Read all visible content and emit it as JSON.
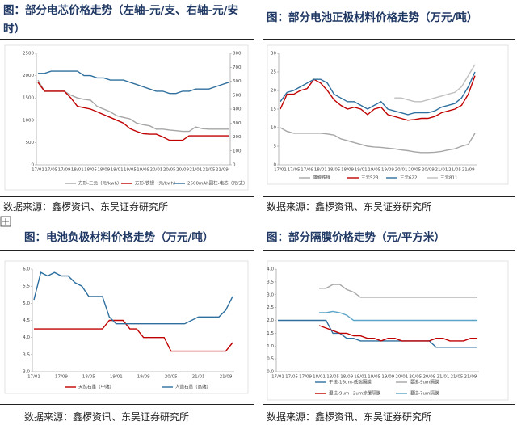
{
  "chart_data": [
    {
      "type": "line",
      "title": "图：部分电芯价格走势（左轴-元/支、右轴-元/安时）",
      "source": "数据来源：鑫椤资讯、东吴证券研究所",
      "categories": [
        "17/01",
        null,
        "17/05",
        null,
        "17/09",
        null,
        "18/01",
        null,
        "18/05",
        null,
        "18/09",
        null,
        "19/01",
        null,
        "19/05",
        null,
        "19/09",
        null,
        "20/01",
        null,
        "20/05",
        null,
        "20/09",
        null,
        "21/01",
        null,
        "21/05",
        null,
        "21/09",
        null
      ],
      "ylim": [
        0,
        2500
      ],
      "yticks": [
        0,
        500,
        1000,
        1500,
        2000,
        2500
      ],
      "y2lim": [
        0,
        800
      ],
      "y2ticks": [
        0,
        100,
        200,
        300,
        400,
        500,
        600,
        700,
        800
      ],
      "series": [
        {
          "name": "方形-三元（元/kwh）",
          "color": "#a6a6a6",
          "axis": "y2",
          "values": [
            608,
            528,
            528,
            528,
            528,
            500,
            480,
            470,
            464,
            420,
            400,
            380,
            352,
            340,
            330,
            300,
            288,
            280,
            256,
            256,
            250,
            245,
            240,
            240,
            272,
            260,
            256,
            256,
            256,
            256
          ]
        },
        {
          "name": "方形-铁锂（元/kwh）",
          "color": "#c00000",
          "axis": "y2",
          "values": [
            592,
            528,
            528,
            528,
            528,
            480,
            420,
            410,
            400,
            380,
            360,
            340,
            320,
            300,
            260,
            240,
            224,
            220,
            220,
            200,
            176,
            176,
            176,
            208,
            208,
            208,
            208,
            208,
            208,
            208
          ]
        },
        {
          "name": "2500mAh圆柱-电芯（元/支）",
          "color": "#2e6f9e",
          "values": [
            2050,
            2050,
            2100,
            2100,
            2100,
            2100,
            2100,
            2000,
            2000,
            1950,
            1950,
            1900,
            1900,
            1900,
            1850,
            1800,
            1750,
            1700,
            1650,
            1650,
            1600,
            1600,
            1650,
            1650,
            1700,
            1700,
            1700,
            1750,
            1800,
            1850
          ]
        }
      ]
    },
    {
      "type": "line",
      "title": "图：部分电池正极材料价格走势（万元/吨）",
      "source": "数据来源：鑫椤资讯、东吴证券研究所",
      "categories": [
        "17/01",
        null,
        "17/05",
        null,
        "17/09",
        null,
        "18/01",
        null,
        "18/05",
        null,
        "18/09",
        null,
        "19/01",
        null,
        "19/05",
        null,
        "19/09",
        null,
        "20/01",
        null,
        "20/05",
        null,
        "20/09",
        null,
        "21/01",
        null,
        "21/05",
        null,
        "21/09",
        null
      ],
      "ylim": [
        0,
        30
      ],
      "yticks": [
        0,
        5,
        10,
        15,
        20,
        25,
        30
      ],
      "series": [
        {
          "name": "磷酸铁锂",
          "color": "#a6a6a6",
          "values": [
            10,
            9,
            8.5,
            8.5,
            8.5,
            8.5,
            8.5,
            8.3,
            8,
            7,
            6.5,
            6,
            5.5,
            5,
            4.8,
            4.7,
            4.5,
            4.3,
            4,
            3.8,
            3.5,
            3.3,
            3.3,
            3.4,
            3.6,
            4,
            4.3,
            5,
            5.5,
            8.5
          ]
        },
        {
          "name": "三元523",
          "color": "#c00000",
          "values": [
            15,
            19,
            19,
            20,
            20.5,
            23,
            22,
            20,
            17.5,
            16,
            15,
            15.5,
            15,
            13.5,
            15,
            15.5,
            13.5,
            13,
            12.5,
            12,
            12.2,
            12.5,
            12.5,
            13,
            14,
            14.5,
            15,
            16,
            19,
            24
          ]
        },
        {
          "name": "三元622",
          "color": "#2e6f9e",
          "values": [
            17,
            19.5,
            20,
            21,
            22,
            23,
            23,
            22,
            19,
            18,
            17,
            17,
            16,
            15,
            16,
            17,
            15,
            14.5,
            14,
            13.5,
            14,
            14,
            14,
            14.5,
            15.5,
            16,
            16.5,
            18,
            21,
            25
          ]
        },
        {
          "name": "三元811",
          "color": "#bfbfbf",
          "values": [
            null,
            null,
            null,
            null,
            null,
            null,
            null,
            null,
            null,
            null,
            null,
            null,
            null,
            null,
            null,
            null,
            null,
            18,
            18,
            17.5,
            17,
            17,
            17.5,
            18,
            18.5,
            19,
            19.5,
            21,
            24,
            27
          ]
        }
      ]
    },
    {
      "type": "line",
      "title": "图：电池负极材料价格走势（万元/吨）",
      "source": "数据来源：鑫椤资讯、东吴证券研究所",
      "categories": [
        "17/01",
        null,
        null,
        null,
        "17/09",
        null,
        null,
        null,
        "18/05",
        null,
        null,
        null,
        "19/01",
        null,
        null,
        null,
        "19/09",
        null,
        null,
        null,
        "20/05",
        null,
        null,
        null,
        "21/01",
        null,
        null,
        null,
        "21/09",
        null
      ],
      "ylim": [
        3,
        6
      ],
      "yticks": [
        {
          "value": 3,
          "label": "3.0"
        },
        3.5,
        {
          "value": 4,
          "label": "4.0"
        },
        4.5,
        {
          "value": 5,
          "label": "5.0"
        },
        5.5,
        {
          "value": 6,
          "label": "6.0"
        }
      ],
      "series": [
        {
          "name": "天然石墨（中端）",
          "color": "#c00000",
          "values": [
            4.25,
            4.25,
            4.25,
            4.25,
            4.25,
            4.25,
            4.25,
            4.25,
            4.25,
            4.25,
            4.25,
            4.5,
            4.5,
            4.5,
            4.25,
            4.25,
            4.0,
            4.0,
            4.0,
            4.0,
            3.6,
            3.6,
            3.6,
            3.6,
            3.6,
            3.6,
            3.6,
            3.6,
            3.6,
            3.85
          ]
        },
        {
          "name": "人造石墨（高端）",
          "color": "#2e6f9e",
          "values": [
            5.1,
            5.9,
            5.8,
            5.9,
            5.8,
            5.8,
            5.6,
            5.5,
            5.2,
            5.2,
            5.2,
            4.6,
            4.4,
            4.4,
            4.4,
            4.4,
            4.4,
            4.4,
            4.4,
            4.4,
            4.4,
            4.4,
            4.4,
            4.5,
            4.6,
            4.6,
            4.6,
            4.6,
            4.8,
            5.2
          ]
        }
      ]
    },
    {
      "type": "line",
      "title": "图：部分隔膜价格走势（元/平方米）",
      "source": "数据来源：鑫椤资讯、东吴证券研究所",
      "categories": [
        "17/01",
        null,
        "17/05",
        null,
        "17/09",
        null,
        "18/01",
        null,
        "18/05",
        null,
        "18/09",
        null,
        "19/01",
        null,
        "19/05",
        null,
        "19/09",
        null,
        "20/01",
        null,
        "20/05",
        null,
        "20/09",
        null,
        "21/01",
        null,
        "21/05",
        null,
        "21/09",
        null
      ],
      "ylim": [
        0,
        4
      ],
      "yticks": [
        {
          "value": 0,
          "label": "0.0"
        },
        0.5,
        {
          "value": 1,
          "label": "1.0"
        },
        1.5,
        {
          "value": 2,
          "label": "2.0"
        },
        2.5,
        {
          "value": 3,
          "label": "3.0"
        },
        3.5,
        {
          "value": 4,
          "label": "4.0"
        }
      ],
      "series": [
        {
          "name": "干法-16um-低端隔膜",
          "color": "#2e6f9e",
          "values": [
            2.0,
            2.0,
            2.0,
            2.0,
            2.0,
            2.0,
            2.0,
            2.0,
            1.5,
            1.5,
            1.3,
            1.3,
            1.2,
            1.2,
            1.2,
            1.2,
            1.2,
            1.2,
            1.2,
            1.2,
            1.2,
            1.2,
            1.2,
            0.95,
            0.95,
            0.95,
            0.95,
            0.95,
            0.95,
            0.95
          ]
        },
        {
          "name": "湿法-9um隔膜",
          "color": "#a6a6a6",
          "values": [
            null,
            null,
            null,
            null,
            null,
            null,
            3.25,
            3.25,
            3.4,
            3.4,
            3.2,
            3.1,
            2.9,
            2.9,
            2.9,
            2.9,
            2.9,
            2.9,
            2.9,
            2.9,
            2.9,
            2.9,
            2.9,
            2.9,
            2.9,
            2.9,
            2.9,
            2.9,
            2.9,
            2.9
          ]
        },
        {
          "name": "湿法-7um隔膜",
          "color": "#5aa5c8",
          "values": [
            null,
            null,
            null,
            null,
            null,
            null,
            2.3,
            2.3,
            2.35,
            2.3,
            2.2,
            2.0,
            2.0,
            2.0,
            2.0,
            2.0,
            2.0,
            2.0,
            2.0,
            2.0,
            2.0,
            2.0,
            2.0,
            2.0,
            2.0,
            2.0,
            2.0,
            2.0,
            2.0,
            2.0
          ]
        },
        {
          "name": "湿法-9um+2um涂覆隔膜",
          "color": "#c00000",
          "values": [
            null,
            null,
            null,
            null,
            null,
            null,
            1.8,
            1.7,
            1.6,
            1.5,
            1.5,
            1.4,
            1.4,
            1.3,
            1.3,
            1.2,
            1.3,
            1.3,
            1.2,
            1.2,
            1.2,
            1.2,
            1.2,
            1.3,
            1.3,
            1.2,
            1.2,
            1.2,
            1.3,
            1.3
          ]
        }
      ]
    }
  ]
}
